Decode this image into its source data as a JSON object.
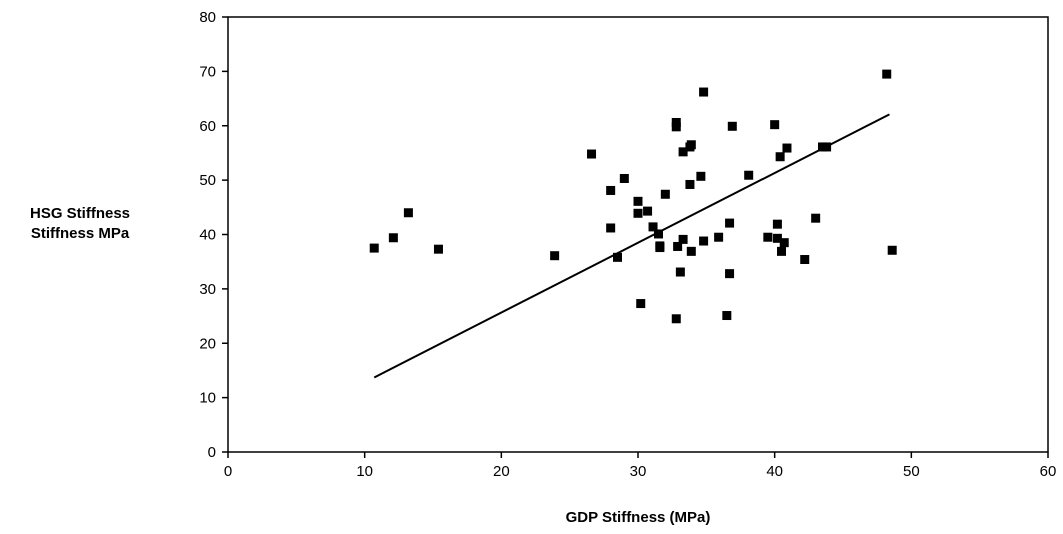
{
  "chart_data": {
    "type": "scatter",
    "title": "",
    "xlabel": "GDP Stiffness (MPa)",
    "ylabel_lines": [
      "HSG Stiffness",
      "Stiffness MPa"
    ],
    "xlim": [
      0,
      60
    ],
    "ylim": [
      0,
      80
    ],
    "x_ticks": [
      0,
      10,
      20,
      30,
      40,
      50,
      60
    ],
    "y_ticks": [
      0,
      10,
      20,
      30,
      40,
      50,
      60,
      70,
      80
    ],
    "grid": false,
    "legend": "none",
    "marker_color": "#000000",
    "series": [
      {
        "marker": "square",
        "points": [
          [
            10.7,
            37.5
          ],
          [
            12.1,
            39.4
          ],
          [
            13.2,
            44.0
          ],
          [
            15.4,
            37.3
          ],
          [
            23.9,
            36.1
          ],
          [
            26.6,
            54.8
          ],
          [
            28.0,
            48.1
          ],
          [
            28.0,
            41.2
          ],
          [
            28.5,
            35.8
          ],
          [
            29.0,
            50.3
          ],
          [
            30.0,
            46.1
          ],
          [
            30.0,
            43.9
          ],
          [
            30.2,
            27.3
          ],
          [
            30.7,
            44.3
          ],
          [
            31.1,
            41.4
          ],
          [
            31.5,
            40.1
          ],
          [
            31.6,
            37.9
          ],
          [
            31.6,
            37.6
          ],
          [
            32.0,
            47.4
          ],
          [
            32.8,
            60.6
          ],
          [
            32.8,
            59.8
          ],
          [
            32.8,
            24.5
          ],
          [
            32.9,
            37.8
          ],
          [
            33.1,
            33.1
          ],
          [
            33.3,
            55.2
          ],
          [
            33.3,
            39.1
          ],
          [
            33.8,
            56.1
          ],
          [
            33.8,
            49.2
          ],
          [
            33.9,
            56.5
          ],
          [
            33.9,
            36.9
          ],
          [
            34.6,
            50.7
          ],
          [
            34.8,
            66.2
          ],
          [
            34.8,
            38.8
          ],
          [
            35.9,
            39.5
          ],
          [
            36.5,
            25.1
          ],
          [
            36.7,
            42.1
          ],
          [
            36.7,
            32.8
          ],
          [
            36.9,
            59.9
          ],
          [
            38.1,
            50.9
          ],
          [
            39.5,
            39.5
          ],
          [
            40.0,
            60.2
          ],
          [
            40.2,
            41.9
          ],
          [
            40.2,
            39.3
          ],
          [
            40.4,
            54.3
          ],
          [
            40.5,
            36.9
          ],
          [
            40.7,
            38.5
          ],
          [
            40.9,
            55.9
          ],
          [
            42.2,
            35.4
          ],
          [
            43.0,
            43.0
          ],
          [
            43.5,
            56.1
          ],
          [
            43.8,
            56.1
          ],
          [
            48.2,
            69.5
          ],
          [
            48.6,
            37.1
          ]
        ]
      }
    ],
    "trendline": {
      "type": "linear",
      "x": [
        10.7,
        48.4
      ],
      "y": [
        13.7,
        62.1
      ]
    }
  }
}
